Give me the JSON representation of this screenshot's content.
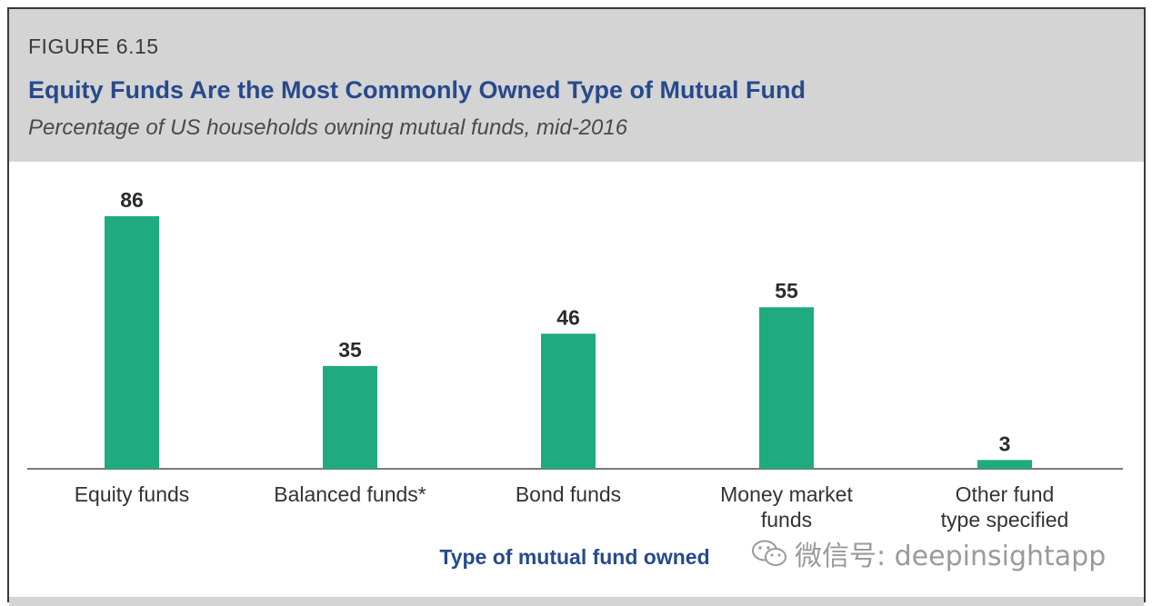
{
  "figure": {
    "label": "FIGURE 6.15",
    "title": "Equity Funds Are the Most Commonly Owned Type of Mutual Fund",
    "subtitle": "Percentage of US households owning mutual funds, mid-2016"
  },
  "colors": {
    "bar": "#1faa80",
    "title": "#264a8c",
    "header_bg": "#d4d4d4"
  },
  "chart_data": {
    "type": "bar",
    "categories": [
      [
        "Equity funds"
      ],
      [
        "Balanced funds*"
      ],
      [
        "Bond funds"
      ],
      [
        "Money market",
        "funds"
      ],
      [
        "Other fund",
        "type specified"
      ]
    ],
    "values": [
      86,
      35,
      46,
      55,
      3
    ],
    "xlabel": "Type of mutual fund owned",
    "ylabel": "",
    "ylim": [
      0,
      86
    ],
    "grid": false,
    "data_labels": true
  },
  "watermark": {
    "text": "微信号: deepinsightapp",
    "icon": "wechat-icon"
  }
}
